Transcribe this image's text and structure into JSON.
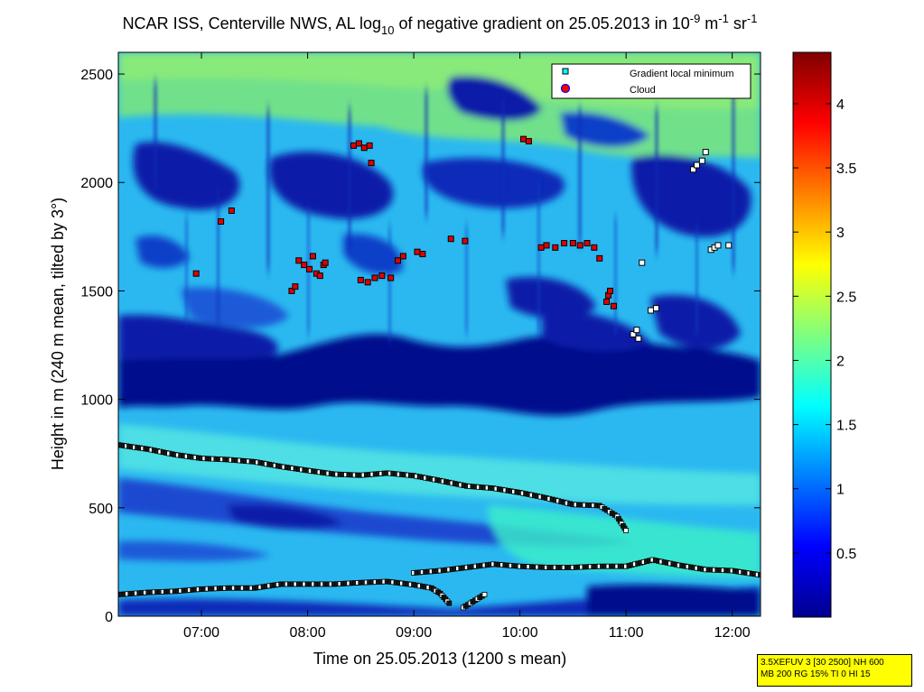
{
  "chart_data": {
    "type": "heatmap",
    "title": {
      "prefix": "NCAR ISS, Centerville NWS, AL log",
      "prefix_sub": "10",
      "middle": " of negative gradient on 25.05.2013 in 10",
      "exp1": "-9",
      "unit1": " m",
      "exp2": "-1",
      "unit2": " sr",
      "exp3": "-1"
    },
    "xlabel": "Time on 25.05.2013 (1200 s mean)",
    "ylabel": "Height in m (240 m mean, tilted by 3°)",
    "xlim": [
      "06:13",
      "12:16"
    ],
    "ylim": [
      0,
      2600
    ],
    "x_ticks": [
      "07:00",
      "08:00",
      "09:00",
      "10:00",
      "11:00",
      "12:00"
    ],
    "y_ticks": [
      0,
      500,
      1000,
      1500,
      2000,
      2500
    ],
    "colorbar": {
      "range": [
        0,
        4.4
      ],
      "ticks": [
        "0.5",
        "1",
        "1.5",
        "2",
        "2.5",
        "3",
        "3.5",
        "4"
      ],
      "colormap": "jet"
    },
    "legend": {
      "position": "top-right",
      "entries": [
        {
          "label": "Gradient local minimum",
          "marker": "square",
          "color": "#00ffff"
        },
        {
          "label": "Cloud",
          "marker": "circle",
          "color": "#ff0000"
        }
      ]
    },
    "series": [
      {
        "kind": "gradient-minimum-layer",
        "points": [
          [
            "06:13",
            790
          ],
          [
            "06:30",
            770
          ],
          [
            "06:45",
            745
          ],
          [
            "07:00",
            728
          ],
          [
            "07:15",
            722
          ],
          [
            "07:30",
            712
          ],
          [
            "07:45",
            690
          ],
          [
            "08:00",
            672
          ],
          [
            "08:15",
            655
          ],
          [
            "08:30",
            650
          ],
          [
            "08:45",
            660
          ],
          [
            "09:00",
            648
          ],
          [
            "09:15",
            625
          ],
          [
            "09:30",
            600
          ],
          [
            "09:45",
            590
          ],
          [
            "10:00",
            570
          ],
          [
            "10:15",
            545
          ],
          [
            "10:30",
            515
          ],
          [
            "10:45",
            510
          ],
          [
            "10:55",
            460
          ],
          [
            "11:00",
            395
          ]
        ]
      },
      {
        "kind": "gradient-minimum-layer",
        "points": [
          [
            "06:13",
            100
          ],
          [
            "06:30",
            110
          ],
          [
            "06:45",
            115
          ],
          [
            "07:00",
            125
          ],
          [
            "07:15",
            130
          ],
          [
            "07:30",
            130
          ],
          [
            "07:45",
            148
          ],
          [
            "08:00",
            148
          ],
          [
            "08:15",
            148
          ],
          [
            "08:30",
            155
          ],
          [
            "08:45",
            160
          ],
          [
            "09:00",
            145
          ],
          [
            "09:10",
            130
          ],
          [
            "09:15",
            105
          ],
          [
            "09:20",
            60
          ]
        ]
      },
      {
        "kind": "gradient-minimum-layer",
        "points": [
          [
            "09:00",
            200
          ],
          [
            "09:15",
            210
          ],
          [
            "09:30",
            225
          ],
          [
            "09:45",
            240
          ],
          [
            "10:00",
            230
          ],
          [
            "10:15",
            225
          ],
          [
            "10:30",
            225
          ],
          [
            "10:45",
            230
          ],
          [
            "11:00",
            230
          ],
          [
            "11:15",
            260
          ],
          [
            "11:30",
            235
          ],
          [
            "11:45",
            215
          ],
          [
            "12:00",
            210
          ],
          [
            "12:16",
            190
          ]
        ]
      },
      {
        "kind": "gradient-minimum-layer",
        "points": [
          [
            "09:28",
            40
          ],
          [
            "09:32",
            60
          ],
          [
            "09:36",
            80
          ],
          [
            "09:40",
            100
          ]
        ]
      },
      {
        "kind": "cloud",
        "points": [
          [
            "06:57",
            1580
          ],
          [
            "07:11",
            1820
          ],
          [
            "07:17",
            1870
          ],
          [
            "07:51",
            1500
          ],
          [
            "07:53",
            1520
          ],
          [
            "07:55",
            1640
          ],
          [
            "07:58",
            1620
          ],
          [
            "08:01",
            1600
          ],
          [
            "08:03",
            1660
          ],
          [
            "08:05",
            1580
          ],
          [
            "08:07",
            1570
          ],
          [
            "08:09",
            1620
          ],
          [
            "08:10",
            1630
          ],
          [
            "08:26",
            2170
          ],
          [
            "08:29",
            2180
          ],
          [
            "08:32",
            2160
          ],
          [
            "08:35",
            2170
          ],
          [
            "08:36",
            2090
          ],
          [
            "08:30",
            1550
          ],
          [
            "08:34",
            1540
          ],
          [
            "08:38",
            1560
          ],
          [
            "08:42",
            1570
          ],
          [
            "08:47",
            1560
          ],
          [
            "08:51",
            1640
          ],
          [
            "08:54",
            1660
          ],
          [
            "09:02",
            1680
          ],
          [
            "09:05",
            1670
          ],
          [
            "09:21",
            1740
          ],
          [
            "09:29",
            1730
          ],
          [
            "10:02",
            2200
          ],
          [
            "10:05",
            2190
          ],
          [
            "10:12",
            1700
          ],
          [
            "10:15",
            1710
          ],
          [
            "10:20",
            1700
          ],
          [
            "10:25",
            1720
          ],
          [
            "10:30",
            1720
          ],
          [
            "10:34",
            1710
          ],
          [
            "10:38",
            1720
          ],
          [
            "10:42",
            1700
          ],
          [
            "10:45",
            1650
          ],
          [
            "10:49",
            1450
          ],
          [
            "10:50",
            1480
          ],
          [
            "10:51",
            1500
          ],
          [
            "10:53",
            1430
          ]
        ]
      },
      {
        "kind": "gradient-local-minimum",
        "points": [
          [
            "11:04",
            1300
          ],
          [
            "11:06",
            1320
          ],
          [
            "11:07",
            1280
          ],
          [
            "11:09",
            1630
          ],
          [
            "11:14",
            1410
          ],
          [
            "11:17",
            1420
          ],
          [
            "11:38",
            2060
          ],
          [
            "11:40",
            2080
          ],
          [
            "11:43",
            2100
          ],
          [
            "11:45",
            2140
          ],
          [
            "11:48",
            1690
          ],
          [
            "11:50",
            1700
          ],
          [
            "11:52",
            1710
          ],
          [
            "11:58",
            1710
          ]
        ]
      }
    ]
  },
  "info_box": {
    "line1": "3.5XEFUV 3 [30 2500] NH 600",
    "line2": "MB 200 RG 15% TI 0 HI 15"
  }
}
